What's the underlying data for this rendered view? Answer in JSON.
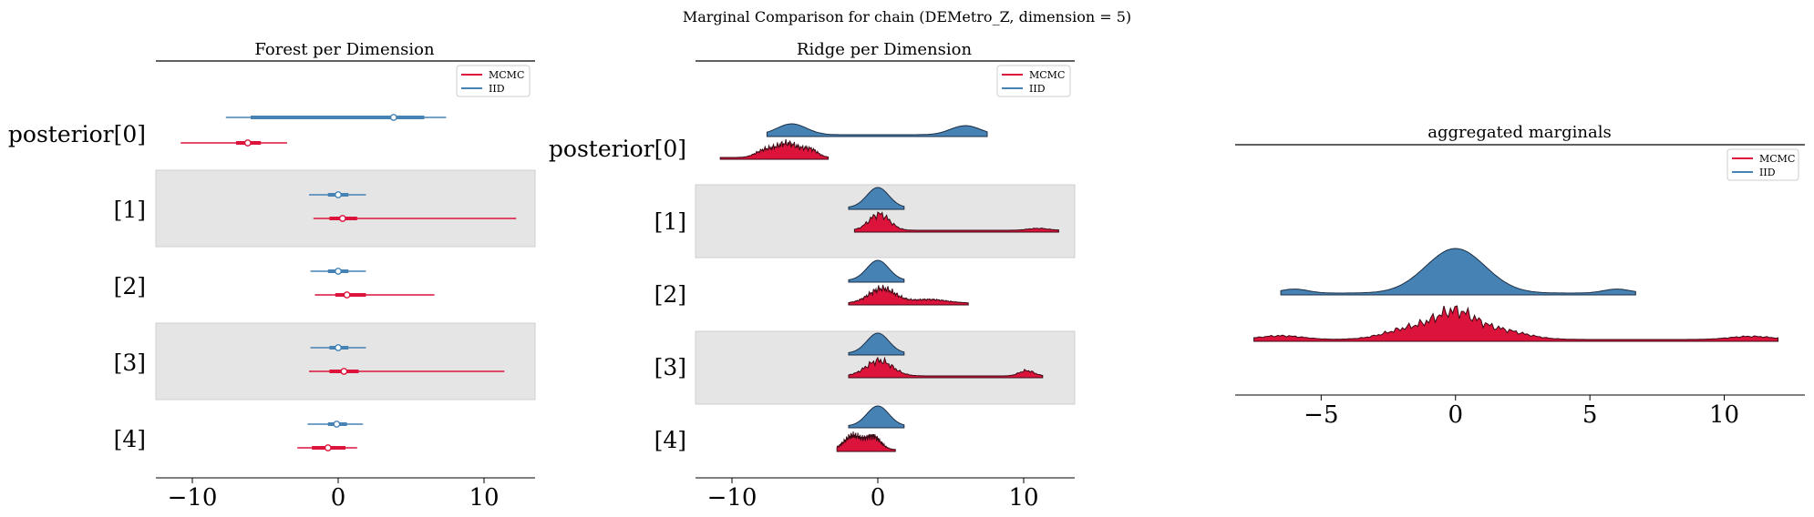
{
  "chart_data": {
    "type": "forest-ridge",
    "title": "Marginal Comparison for chain (DEMetro_Z, dimension = 5)",
    "colors": {
      "MCMC": "#dc143c",
      "IID": "#4682b4",
      "band": "#e5e5e5"
    },
    "legend": {
      "entries": [
        "MCMC",
        "IID"
      ],
      "placement": "upper right"
    },
    "row_labels": [
      "posterior[0]",
      "[1]",
      "[2]",
      "[3]",
      "[4]"
    ],
    "xlim": [
      -12.5,
      13.5
    ],
    "xticks": [
      -10,
      0,
      10
    ],
    "xtick_labels": [
      "−10",
      "0",
      "10"
    ],
    "forest": {
      "title": "Forest per Dimension",
      "rows": [
        {
          "label": "posterior[0]",
          "IID": {
            "hdi94": [
              -7.7,
              7.4
            ],
            "iqr": [
              -6.0,
              5.9
            ],
            "median": 3.8
          },
          "MCMC": {
            "hdi94": [
              -10.8,
              -3.5
            ],
            "iqr": [
              -7.0,
              -5.3
            ],
            "median": -6.2
          }
        },
        {
          "label": "[1]",
          "IID": {
            "hdi94": [
              -2.0,
              1.9
            ],
            "iqr": [
              -0.7,
              0.7
            ],
            "median": 0.0
          },
          "MCMC": {
            "hdi94": [
              -1.7,
              12.2
            ],
            "iqr": [
              -0.6,
              1.3
            ],
            "median": 0.3
          }
        },
        {
          "label": "[2]",
          "IID": {
            "hdi94": [
              -1.9,
              1.9
            ],
            "iqr": [
              -0.7,
              0.7
            ],
            "median": 0.0
          },
          "MCMC": {
            "hdi94": [
              -1.6,
              6.6
            ],
            "iqr": [
              -0.2,
              1.9
            ],
            "median": 0.6
          }
        },
        {
          "label": "[3]",
          "IID": {
            "hdi94": [
              -1.9,
              1.9
            ],
            "iqr": [
              -0.6,
              0.7
            ],
            "median": 0.0
          },
          "MCMC": {
            "hdi94": [
              -2.0,
              11.4
            ],
            "iqr": [
              -0.6,
              1.4
            ],
            "median": 0.4
          }
        },
        {
          "label": "[4]",
          "IID": {
            "hdi94": [
              -2.1,
              1.7
            ],
            "iqr": [
              -0.7,
              0.6
            ],
            "median": -0.1
          },
          "MCMC": {
            "hdi94": [
              -2.8,
              1.3
            ],
            "iqr": [
              -1.8,
              0.5
            ],
            "median": -0.7
          }
        }
      ]
    },
    "ridge": {
      "title": "Ridge per Dimension",
      "rows": [
        {
          "label": "posterior[0]",
          "IID": {
            "support": [
              -7.6,
              7.5
            ],
            "modes": [
              [
                -5.9,
                1.0,
                1.2
              ],
              [
                6.0,
                1.0,
                1.0
              ]
            ]
          },
          "MCMC": {
            "support": [
              -10.8,
              -3.4
            ],
            "modes": [
              [
                -7.8,
                0.6,
                0.45
              ],
              [
                -6.2,
                0.8,
                1.0
              ],
              [
                -4.6,
                0.5,
                0.5
              ]
            ]
          }
        },
        {
          "label": "[1]",
          "IID": {
            "support": [
              -2.0,
              1.8
            ],
            "modes": [
              [
                0.0,
                0.75,
                1.0
              ]
            ]
          },
          "MCMC": {
            "support": [
              -1.6,
              12.4
            ],
            "modes": [
              [
                0.1,
                0.7,
                1.0
              ],
              [
                11.0,
                0.7,
                0.12
              ]
            ]
          }
        },
        {
          "label": "[2]",
          "IID": {
            "support": [
              -2.0,
              1.8
            ],
            "modes": [
              [
                0.0,
                0.75,
                1.0
              ]
            ]
          },
          "MCMC": {
            "support": [
              -2.0,
              6.2
            ],
            "modes": [
              [
                0.3,
                0.9,
                1.0
              ],
              [
                3.5,
                1.2,
                0.25
              ]
            ]
          }
        },
        {
          "label": "[3]",
          "IID": {
            "support": [
              -2.0,
              1.8
            ],
            "modes": [
              [
                0.0,
                0.75,
                1.0
              ]
            ]
          },
          "MCMC": {
            "support": [
              -2.0,
              11.3
            ],
            "modes": [
              [
                0.1,
                0.9,
                1.0
              ],
              [
                10.2,
                0.5,
                0.35
              ]
            ]
          }
        },
        {
          "label": "[4]",
          "IID": {
            "support": [
              -2.0,
              1.8
            ],
            "modes": [
              [
                0.0,
                0.75,
                1.0
              ]
            ]
          },
          "MCMC": {
            "support": [
              -2.8,
              1.2
            ],
            "modes": [
              [
                -1.7,
                0.6,
                1.0
              ],
              [
                -0.3,
                0.5,
                0.9
              ]
            ]
          }
        }
      ]
    },
    "aggregated": {
      "title": "aggregated marginals",
      "xlim": [
        -8.2,
        13.0
      ],
      "xticks": [
        -5,
        0,
        5,
        10
      ],
      "xtick_labels": [
        "−5",
        "0",
        "5",
        "10"
      ],
      "IID": {
        "support": [
          -6.5,
          6.7
        ],
        "modes": [
          [
            0.0,
            1.1,
            1.0
          ],
          [
            -6.0,
            0.5,
            0.09
          ],
          [
            6.0,
            0.5,
            0.09
          ]
        ]
      },
      "MCMC": {
        "support": [
          -7.5,
          12.0
        ],
        "modes": [
          [
            0.0,
            0.7,
            1.0
          ],
          [
            -1.5,
            1.0,
            0.55
          ],
          [
            1.5,
            1.0,
            0.45
          ],
          [
            -6.5,
            0.8,
            0.17
          ],
          [
            11.0,
            0.8,
            0.14
          ]
        ]
      }
    }
  }
}
